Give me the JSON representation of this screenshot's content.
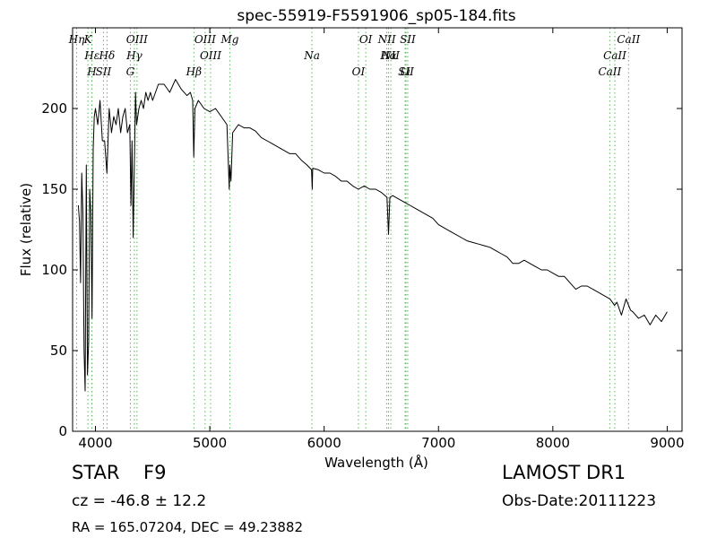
{
  "chart_data": {
    "type": "line",
    "title": "spec-55919-F5591906_sp05-184.fits",
    "xlabel": "Wavelength (Å)",
    "ylabel": "Flux (relative)",
    "xlim": [
      3800,
      9130
    ],
    "ylim": [
      0,
      250
    ],
    "xticks": [
      {
        "v": 4000,
        "label": "4000"
      },
      {
        "v": 5000,
        "label": "5000"
      },
      {
        "v": 6000,
        "label": "6000"
      },
      {
        "v": 7000,
        "label": "7000"
      },
      {
        "v": 8000,
        "label": "8000"
      },
      {
        "v": 9000,
        "label": "9000"
      }
    ],
    "yticks": [
      {
        "v": 0,
        "label": "0"
      },
      {
        "v": 50,
        "label": "50"
      },
      {
        "v": 100,
        "label": "100"
      },
      {
        "v": 150,
        "label": "150"
      },
      {
        "v": 200,
        "label": "200"
      }
    ],
    "grid": false,
    "series": [
      {
        "color": "#000000",
        "x": [
          3850,
          3860,
          3870,
          3880,
          3890,
          3900,
          3910,
          3920,
          3930,
          3940,
          3950,
          3960,
          3970,
          3980,
          3990,
          4000,
          4020,
          4040,
          4060,
          4080,
          4100,
          4120,
          4140,
          4160,
          4180,
          4200,
          4220,
          4240,
          4260,
          4280,
          4300,
          4310,
          4320,
          4330,
          4340,
          4350,
          4360,
          4380,
          4400,
          4420,
          4440,
          4460,
          4480,
          4500,
          4550,
          4600,
          4650,
          4700,
          4750,
          4800,
          4830,
          4850,
          4860,
          4870,
          4900,
          4950,
          5000,
          5050,
          5100,
          5150,
          5170,
          5175,
          5185,
          5200,
          5250,
          5300,
          5350,
          5400,
          5450,
          5500,
          5550,
          5600,
          5650,
          5700,
          5750,
          5800,
          5850,
          5890,
          5896,
          5900,
          5950,
          6000,
          6050,
          6100,
          6150,
          6200,
          6250,
          6300,
          6350,
          6400,
          6450,
          6500,
          6550,
          6563,
          6575,
          6600,
          6650,
          6700,
          6750,
          6800,
          6850,
          6900,
          6950,
          7000,
          7050,
          7100,
          7150,
          7200,
          7250,
          7300,
          7350,
          7400,
          7450,
          7500,
          7550,
          7600,
          7650,
          7700,
          7750,
          7800,
          7850,
          7900,
          7950,
          8000,
          8050,
          8100,
          8150,
          8200,
          8250,
          8300,
          8350,
          8400,
          8450,
          8500,
          8540,
          8560,
          8600,
          8640,
          8680,
          8700,
          8750,
          8800,
          8850,
          8900,
          8950,
          9000
        ],
        "y": [
          140,
          130,
          92,
          160,
          135,
          50,
          25,
          165,
          35,
          55,
          150,
          135,
          70,
          175,
          195,
          200,
          190,
          205,
          180,
          180,
          160,
          200,
          185,
          195,
          190,
          200,
          185,
          195,
          200,
          185,
          190,
          140,
          180,
          120,
          165,
          210,
          190,
          200,
          205,
          200,
          210,
          205,
          210,
          205,
          215,
          215,
          210,
          218,
          212,
          208,
          210,
          205,
          170,
          200,
          205,
          200,
          198,
          200,
          195,
          190,
          150,
          165,
          155,
          185,
          190,
          188,
          188,
          186,
          182,
          180,
          178,
          176,
          174,
          172,
          172,
          168,
          165,
          162,
          150,
          163,
          162,
          160,
          160,
          158,
          155,
          155,
          152,
          150,
          152,
          150,
          150,
          148,
          145,
          122,
          145,
          146,
          144,
          142,
          140,
          138,
          136,
          134,
          132,
          128,
          126,
          124,
          122,
          120,
          118,
          117,
          116,
          115,
          114,
          112,
          110,
          108,
          104,
          104,
          106,
          104,
          102,
          100,
          100,
          98,
          96,
          96,
          92,
          88,
          90,
          90,
          88,
          86,
          84,
          82,
          78,
          80,
          72,
          82,
          75,
          74,
          70,
          72,
          66,
          72,
          68,
          74
        ]
      }
    ],
    "lines": [
      {
        "label": "K",
        "x": 3934
      },
      {
        "label": "Hε",
        "x": 3970
      },
      {
        "label": "H",
        "x": 3968
      },
      {
        "label": "Hη",
        "x": 3835
      },
      {
        "label": "Hδ",
        "x": 4101
      },
      {
        "label": "SII",
        "x": 4070
      },
      {
        "label": "OIII",
        "x": 4363
      },
      {
        "label": "Hγ",
        "x": 4340
      },
      {
        "label": "G",
        "x": 4305
      },
      {
        "label": "OIII",
        "x": 4959
      },
      {
        "label": "OIII",
        "x": 5007
      },
      {
        "label": "Hβ",
        "x": 4861
      },
      {
        "label": "Mg",
        "x": 5175
      },
      {
        "label": "Na",
        "x": 5893
      },
      {
        "label": "OI",
        "x": 6300
      },
      {
        "label": "OI",
        "x": 6364
      },
      {
        "label": "Hα",
        "x": 6563
      },
      {
        "label": "SII",
        "x": 6716
      },
      {
        "label": "NII",
        "x": 6548
      },
      {
        "label": "NII",
        "x": 6583
      },
      {
        "label": "Li",
        "x": 6708
      },
      {
        "label": "SII",
        "x": 6731
      },
      {
        "label": "CaII",
        "x": 8542
      },
      {
        "label": "CaII",
        "x": 8498
      },
      {
        "label": "CaII",
        "x": 8662
      }
    ]
  },
  "info": {
    "object_type": "STAR",
    "subclass": "F9",
    "survey": "LAMOST DR1",
    "cz": "cz = -46.8 ± 12.2",
    "obs_date": "Obs-Date:20111223",
    "coords": "RA = 165.07204, DEC = 49.23882"
  },
  "colors": {
    "spectrum": "#000000",
    "line_marker": "#5cb85c"
  }
}
